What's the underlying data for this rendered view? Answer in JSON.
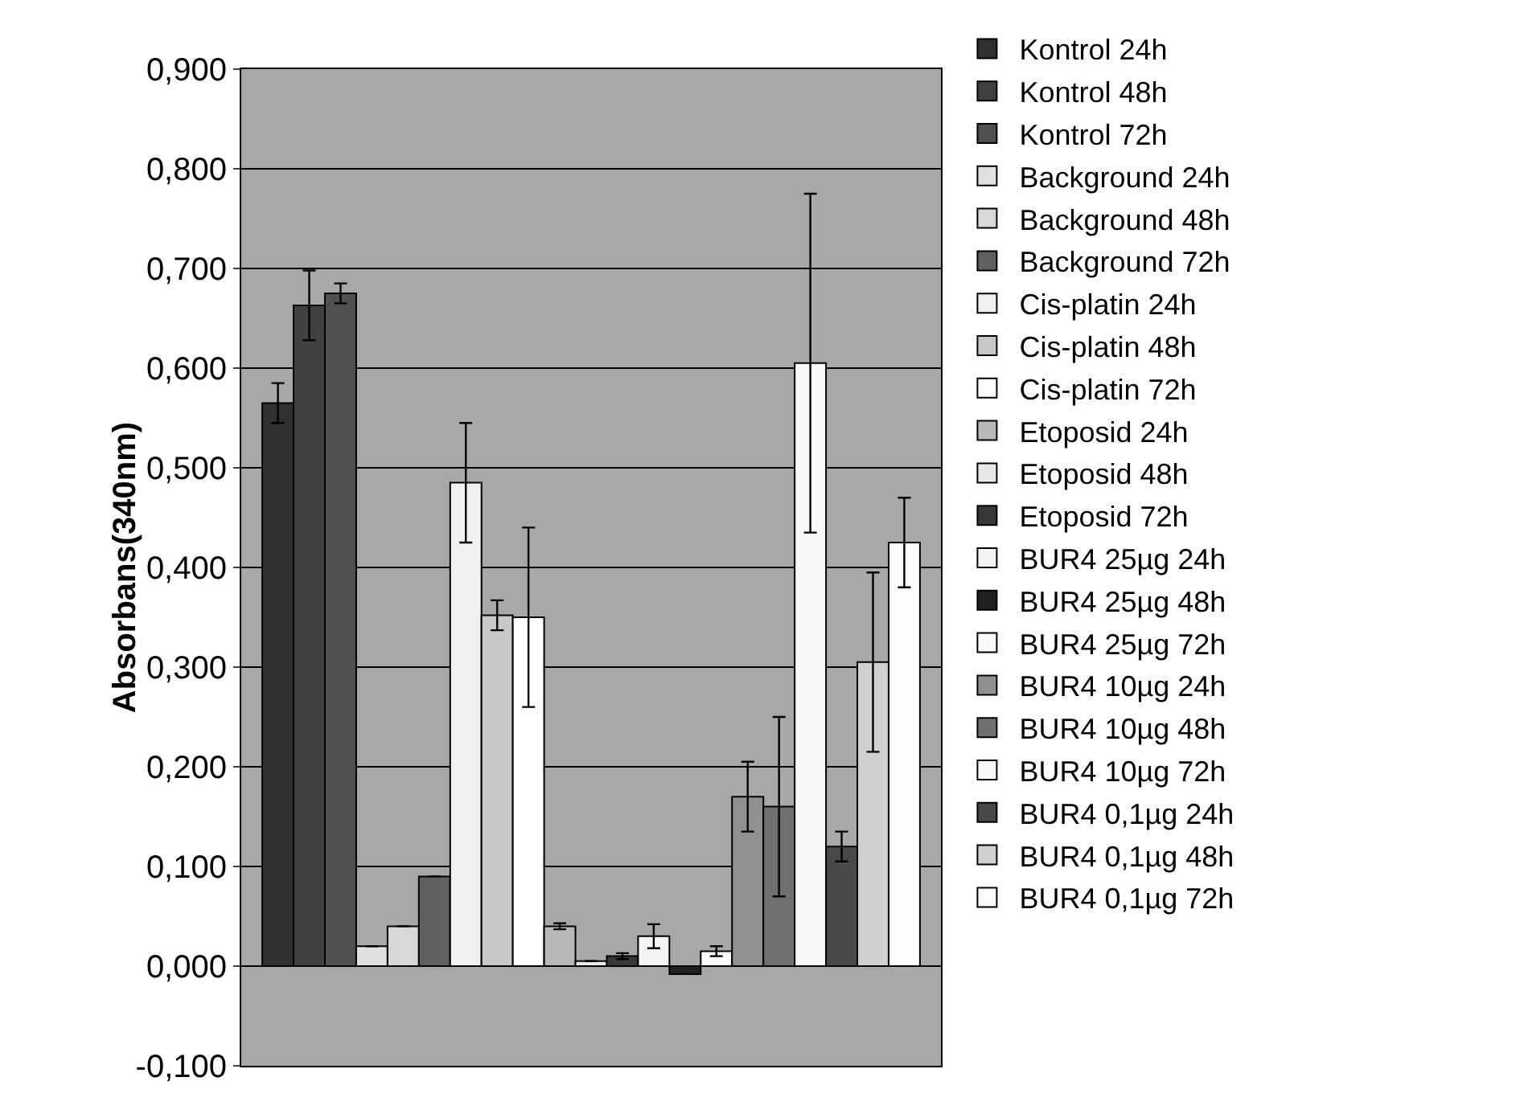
{
  "chart_data": {
    "type": "bar",
    "ylabel": "Absorbans(340nm)",
    "categories": [
      null
    ],
    "ylim": [
      -0.1,
      0.9
    ],
    "yticks": [
      {
        "value": -0.1,
        "label": "-0,100"
      },
      {
        "value": 0,
        "label": "0,000"
      },
      {
        "value": 0.1,
        "label": "0,100"
      },
      {
        "value": 0.2,
        "label": "0,200"
      },
      {
        "value": 0.3,
        "label": "0,300"
      },
      {
        "value": 0.4,
        "label": "0,400"
      },
      {
        "value": 0.5,
        "label": "0,500"
      },
      {
        "value": 0.6,
        "label": "0,600"
      },
      {
        "value": 0.7,
        "label": "0,700"
      },
      {
        "value": 0.8,
        "label": "0,800"
      },
      {
        "value": 0.9,
        "label": "0,900"
      }
    ],
    "grid": "y",
    "legend": "right",
    "series": [
      {
        "name": "Kontrol 24h",
        "color": "#303030",
        "values": [
          0.565
        ],
        "errors": [
          0.02
        ]
      },
      {
        "name": "Kontrol 48h",
        "color": "#404040",
        "values": [
          0.663
        ],
        "errors": [
          0.035
        ]
      },
      {
        "name": "Kontrol 72h",
        "color": "#505050",
        "values": [
          0.675
        ],
        "errors": [
          0.01
        ]
      },
      {
        "name": "Background 24h",
        "color": "#e0e0e0",
        "values": [
          0.02
        ],
        "errors": [
          null
        ]
      },
      {
        "name": "Background 48h",
        "color": "#d8d8d8",
        "values": [
          0.04
        ],
        "errors": [
          null
        ]
      },
      {
        "name": "Background 72h",
        "color": "#606060",
        "values": [
          0.09
        ],
        "errors": [
          null
        ]
      },
      {
        "name": "Cis-platin 24h",
        "color": "#f0f0f0",
        "values": [
          0.485
        ],
        "errors": [
          0.06
        ]
      },
      {
        "name": "Cis-platin 48h",
        "color": "#c8c8c8",
        "values": [
          0.352
        ],
        "errors": [
          0.015
        ]
      },
      {
        "name": "Cis-platin 72h",
        "color": "#ffffff",
        "values": [
          0.35
        ],
        "errors": [
          0.09
        ]
      },
      {
        "name": "Etoposid 24h",
        "color": "#b8b8b8",
        "values": [
          0.04
        ],
        "errors": [
          0.003
        ]
      },
      {
        "name": "Etoposid 48h",
        "color": "#e8e8e8",
        "values": [
          0.005
        ],
        "errors": [
          null
        ]
      },
      {
        "name": "Etoposid 72h",
        "color": "#383838",
        "values": [
          0.01
        ],
        "errors": [
          0.003
        ]
      },
      {
        "name": "BUR4 25µg 24h",
        "color": "#f4f4f4",
        "values": [
          0.03
        ],
        "errors": [
          0.012
        ]
      },
      {
        "name": "BUR4 25µg 48h",
        "color": "#202020",
        "values": [
          -0.008
        ],
        "errors": [
          null
        ]
      },
      {
        "name": "BUR4 25µg 72h",
        "color": "#fafafa",
        "values": [
          0.015
        ],
        "errors": [
          0.005
        ]
      },
      {
        "name": "BUR4 10µg 24h",
        "color": "#909090",
        "values": [
          0.17
        ],
        "errors": [
          0.035
        ]
      },
      {
        "name": "BUR4 10µg 48h",
        "color": "#707070",
        "values": [
          0.16
        ],
        "errors": [
          0.09
        ]
      },
      {
        "name": "BUR4 10µg 72h",
        "color": "#f8f8f8",
        "values": [
          0.605
        ],
        "errors": [
          0.17
        ]
      },
      {
        "name": "BUR4 0,1µg 24h",
        "color": "#484848",
        "values": [
          0.12
        ],
        "errors": [
          0.015
        ]
      },
      {
        "name": "BUR4 0,1µg 48h",
        "color": "#d0d0d0",
        "values": [
          0.305
        ],
        "errors": [
          0.09
        ]
      },
      {
        "name": "BUR4 0,1µg 72h",
        "color": "#fcfcfc",
        "values": [
          0.425
        ],
        "errors": [
          0.045
        ]
      }
    ]
  }
}
